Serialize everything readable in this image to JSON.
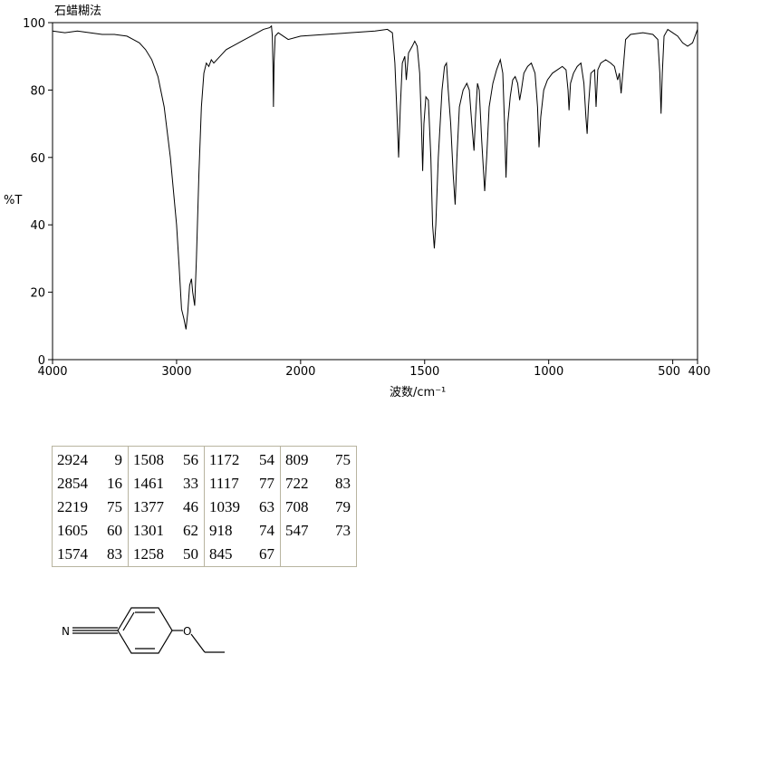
{
  "chart_data": {
    "type": "line",
    "title": "石蜡糊法",
    "x_label": "波数/cm⁻¹",
    "y_label": "%T",
    "xlim": [
      4000,
      400
    ],
    "xticks": [
      4000,
      3000,
      2000,
      1500,
      1000,
      500,
      400
    ],
    "ylim": [
      0,
      100
    ],
    "yticks": [
      0,
      20,
      40,
      60,
      80,
      100
    ],
    "x_scale_break": 2000,
    "color": "#000000",
    "x": [
      4000,
      3900,
      3800,
      3700,
      3600,
      3500,
      3400,
      3350,
      3300,
      3250,
      3200,
      3150,
      3100,
      3050,
      3000,
      2980,
      2960,
      2940,
      2924,
      2910,
      2895,
      2880,
      2870,
      2854,
      2840,
      2820,
      2800,
      2780,
      2760,
      2740,
      2720,
      2700,
      2650,
      2600,
      2550,
      2500,
      2450,
      2400,
      2350,
      2300,
      2250,
      2235,
      2228,
      2222,
      2219,
      2214,
      2205,
      2180,
      2100,
      2000,
      1900,
      1800,
      1700,
      1650,
      1630,
      1620,
      1610,
      1605,
      1598,
      1590,
      1580,
      1574,
      1565,
      1550,
      1540,
      1530,
      1520,
      1513,
      1508,
      1503,
      1495,
      1485,
      1475,
      1468,
      1461,
      1455,
      1445,
      1430,
      1420,
      1412,
      1405,
      1395,
      1385,
      1377,
      1370,
      1360,
      1345,
      1330,
      1320,
      1310,
      1301,
      1295,
      1287,
      1280,
      1270,
      1258,
      1250,
      1240,
      1225,
      1210,
      1195,
      1185,
      1178,
      1172,
      1165,
      1155,
      1145,
      1135,
      1125,
      1117,
      1110,
      1100,
      1085,
      1070,
      1055,
      1045,
      1039,
      1032,
      1020,
      1005,
      985,
      965,
      945,
      930,
      922,
      918,
      912,
      900,
      885,
      870,
      858,
      850,
      845,
      840,
      830,
      815,
      809,
      802,
      790,
      770,
      750,
      735,
      722,
      715,
      708,
      700,
      690,
      670,
      620,
      580,
      560,
      552,
      547,
      542,
      535,
      520,
      500,
      480,
      460,
      440,
      420,
      410,
      400
    ],
    "values": [
      97.5,
      97,
      97.5,
      97,
      96.5,
      96.5,
      96,
      95,
      94,
      92,
      89,
      84,
      75,
      60,
      40,
      28,
      15,
      12,
      9,
      14,
      22,
      24,
      20,
      16,
      30,
      55,
      75,
      85,
      88,
      87,
      89,
      88,
      90,
      92,
      93,
      94,
      95,
      96,
      97,
      98,
      98.5,
      99,
      96,
      85,
      75,
      88,
      96,
      97,
      95,
      96,
      96.5,
      97,
      97.5,
      98,
      97,
      88,
      70,
      60,
      75,
      88,
      90,
      83,
      91,
      93,
      94.5,
      93,
      85,
      70,
      56,
      70,
      78,
      77,
      60,
      40,
      33,
      40,
      60,
      80,
      87,
      88,
      80,
      70,
      55,
      46,
      60,
      75,
      80,
      82,
      80,
      70,
      62,
      72,
      82,
      80,
      65,
      50,
      60,
      75,
      82,
      86,
      89,
      85,
      70,
      54,
      70,
      78,
      83,
      84,
      82,
      77,
      80,
      85,
      87,
      88,
      85,
      75,
      63,
      72,
      80,
      83,
      85,
      86,
      87,
      86,
      80,
      74,
      82,
      85,
      87,
      88,
      82,
      72,
      67,
      75,
      85,
      86,
      75,
      86,
      88,
      89,
      88,
      87,
      83,
      85,
      79,
      86,
      95,
      96.5,
      97,
      96.5,
      95,
      85,
      73,
      85,
      96,
      98,
      97,
      96,
      94,
      93,
      94,
      96,
      98
    ]
  },
  "peak_table": [
    [
      2924,
      9
    ],
    [
      2854,
      16
    ],
    [
      2219,
      75
    ],
    [
      1605,
      60
    ],
    [
      1574,
      83
    ],
    [
      1508,
      56
    ],
    [
      1461,
      33
    ],
    [
      1377,
      46
    ],
    [
      1301,
      62
    ],
    [
      1258,
      50
    ],
    [
      1172,
      54
    ],
    [
      1117,
      77
    ],
    [
      1039,
      63
    ],
    [
      918,
      74
    ],
    [
      845,
      67
    ],
    [
      809,
      75
    ],
    [
      722,
      83
    ],
    [
      708,
      79
    ],
    [
      547,
      73
    ]
  ],
  "structure": {
    "atoms": [
      "N",
      "O"
    ]
  }
}
